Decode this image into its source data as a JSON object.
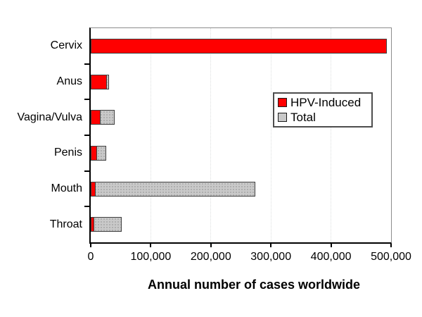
{
  "chart_data": {
    "type": "bar",
    "orientation": "horizontal",
    "title": "",
    "xlabel": "Annual number of cases worldwide",
    "ylabel": "",
    "categories": [
      "Cervix",
      "Anus",
      "Vagina/Vulva",
      "Penis",
      "Mouth",
      "Throat"
    ],
    "series": [
      {
        "name": "HPV-Induced",
        "color": "#ff0000",
        "values": [
          493000,
          27000,
          16000,
          10500,
          8000,
          6000
        ]
      },
      {
        "name": "Total",
        "color": "#c9c9c9",
        "values": [
          493000,
          30000,
          40000,
          26000,
          274000,
          52000
        ]
      }
    ],
    "xlim": [
      0,
      500000
    ],
    "xticks": [
      0,
      100000,
      200000,
      300000,
      400000,
      500000
    ],
    "xtick_labels": [
      "0",
      "100,000",
      "200,000",
      "300,000",
      "400,000",
      "500,000"
    ],
    "grid": "vertical dotted, very light",
    "legend_position": "inside upper-right",
    "legend_border_color": "#4d4d4d",
    "bar_outline_color": "#3f3f3f"
  }
}
